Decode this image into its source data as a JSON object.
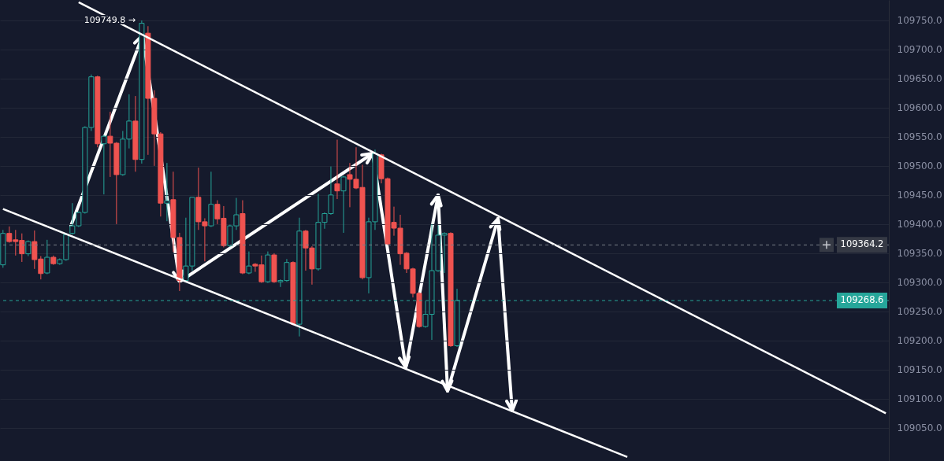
{
  "chart_data": {
    "type": "candlestick",
    "categories": [
      null,
      null,
      null,
      null,
      null,
      null,
      null,
      null,
      null,
      null,
      null,
      null,
      null,
      null,
      null,
      null,
      null,
      null,
      null,
      null,
      null,
      null,
      null,
      null,
      null,
      null,
      null,
      null,
      null,
      null,
      null,
      null,
      null,
      null,
      null,
      null,
      null,
      null,
      null,
      null,
      null,
      null,
      null,
      null,
      null,
      null,
      null,
      null,
      null,
      null,
      null,
      null,
      null,
      null,
      null,
      null,
      null,
      null,
      null,
      null,
      null,
      null,
      null,
      null,
      null,
      null,
      null,
      null,
      null,
      null,
      null,
      null,
      null,
      null,
      null,
      null,
      null,
      null,
      null,
      null,
      null,
      null,
      null,
      null,
      null,
      null,
      null,
      null,
      null,
      null,
      null,
      null,
      null,
      null,
      null,
      null,
      null,
      null,
      null,
      null,
      null,
      null,
      null,
      null,
      null,
      null,
      null,
      null,
      null,
      null,
      null,
      null,
      null,
      null,
      null,
      null,
      null,
      null,
      null,
      null,
      null,
      null,
      null,
      null,
      null,
      null,
      null,
      null,
      null,
      null,
      null,
      null,
      null,
      null,
      null,
      null,
      null,
      null,
      null,
      null,
      null
    ],
    "ohlc": [
      [
        109330,
        109390,
        109325,
        109384
      ],
      [
        109384,
        109396,
        109368,
        109370
      ],
      [
        109373,
        109390,
        109346,
        109370
      ],
      [
        109372,
        109384,
        109335,
        109349
      ],
      [
        109349,
        109372,
        109345,
        109370
      ],
      [
        109370,
        109389,
        109323,
        109339
      ],
      [
        109340,
        109345,
        109305,
        109315
      ],
      [
        109316,
        109373,
        109314,
        109343
      ],
      [
        109343,
        109346,
        109330,
        109332
      ],
      [
        109332,
        109341,
        109330,
        109339
      ],
      [
        109339,
        109384,
        109337,
        109382
      ],
      [
        109384,
        109436,
        109382,
        109397
      ],
      [
        109397,
        109422,
        109395,
        109420
      ],
      [
        109420,
        109568,
        109418,
        109566
      ],
      [
        109566,
        109657,
        109560,
        109653
      ],
      [
        109653,
        109655,
        109532,
        109538
      ],
      [
        109538,
        109553,
        109451,
        109551
      ],
      [
        109551,
        109593,
        109481,
        109539
      ],
      [
        109539,
        109541,
        109400,
        109485
      ],
      [
        109485,
        109560,
        109483,
        109546
      ],
      [
        109546,
        109623,
        109530,
        109577
      ],
      [
        109577,
        109620,
        109490,
        109511
      ],
      [
        109511,
        109749.8,
        109504,
        109745
      ],
      [
        109728,
        109740,
        109519,
        109616
      ],
      [
        109616,
        109630,
        109500,
        109555
      ],
      [
        109555,
        109558,
        109413,
        109436
      ],
      [
        109436,
        109505,
        109405,
        109440
      ],
      [
        109442,
        109490,
        109352,
        109377
      ],
      [
        109377,
        109385,
        109285,
        109303
      ],
      [
        109303,
        109411,
        109300,
        109328
      ],
      [
        109328,
        109446,
        109320,
        109446
      ],
      [
        109446,
        109497,
        109390,
        109404
      ],
      [
        109404,
        109410,
        109336,
        109397
      ],
      [
        109397,
        109490,
        109395,
        109434
      ],
      [
        109434,
        109441,
        109400,
        109409
      ],
      [
        109410,
        109431,
        109360,
        109363
      ],
      [
        109363,
        109399,
        109361,
        109397
      ],
      [
        109397,
        109445,
        109390,
        109416
      ],
      [
        109418,
        109441,
        109314,
        109316
      ],
      [
        109316,
        109353,
        109314,
        109328
      ],
      [
        109331,
        109333,
        109318,
        109328
      ],
      [
        109330,
        109346,
        109299,
        109301
      ],
      [
        109301,
        109353,
        109299,
        109347
      ],
      [
        109347,
        109350,
        109299,
        109301
      ],
      [
        109301,
        109305,
        109292,
        109303
      ],
      [
        109303,
        109340,
        109301,
        109334
      ],
      [
        109334,
        109336,
        109226,
        109228
      ],
      [
        109228,
        109411,
        109207,
        109388
      ],
      [
        109388,
        109390,
        109320,
        109359
      ],
      [
        109359,
        109362,
        109296,
        109323
      ],
      [
        109323,
        109452,
        109320,
        109403
      ],
      [
        109403,
        109420,
        109392,
        109418
      ],
      [
        109418,
        109499,
        109416,
        109450
      ],
      [
        109469,
        109545,
        109443,
        109457
      ],
      [
        109457,
        109483,
        109385,
        109481
      ],
      [
        109485,
        109505,
        109429,
        109477
      ],
      [
        109477,
        109532,
        109460,
        109462
      ],
      [
        109463,
        109502,
        109305,
        109308
      ],
      [
        109308,
        109411,
        109281,
        109404
      ],
      [
        109404,
        109528,
        109390,
        109521
      ],
      [
        109519,
        109521,
        109470,
        109478
      ],
      [
        109478,
        109480,
        109364,
        109366
      ],
      [
        109403,
        109430,
        109380,
        109393
      ],
      [
        109393,
        109416,
        109330,
        109349
      ],
      [
        109350,
        109352,
        109316,
        109323
      ],
      [
        109323,
        109325,
        109274,
        109281
      ],
      [
        109281,
        109283,
        109222,
        109224
      ],
      [
        109224,
        109268,
        109222,
        109245
      ],
      [
        109245,
        109400,
        109201,
        109320
      ],
      [
        109320,
        109398,
        109318,
        109381
      ],
      [
        109381,
        109386,
        109316,
        109384
      ],
      [
        109384,
        109386,
        109189,
        109191
      ],
      [
        109191,
        109289,
        109189,
        109268.6
      ],
      null,
      null,
      null,
      null,
      null,
      null,
      null,
      null,
      null,
      null,
      null,
      null,
      null,
      null,
      null,
      null,
      null,
      null,
      null,
      null,
      null,
      null,
      null,
      null,
      null,
      null,
      null,
      null,
      null,
      null,
      null,
      null,
      null,
      null,
      null,
      null,
      null,
      null,
      null,
      null,
      null,
      null,
      null,
      null,
      null,
      null,
      null,
      null,
      null,
      null,
      null,
      null,
      null,
      null,
      null,
      null,
      null,
      null,
      null,
      null,
      null,
      null,
      null,
      null,
      null,
      null,
      null,
      null
    ],
    "series": [
      {
        "type": "line",
        "color": "#ffffff",
        "values": [
          null,
          null,
          null,
          null,
          null,
          null,
          null,
          null,
          null,
          null,
          null,
          null,
          109781,
          null,
          null,
          null,
          null,
          null,
          null,
          null,
          null,
          null,
          null,
          null,
          null,
          null,
          null,
          null,
          null,
          null,
          null,
          null,
          null,
          null,
          null,
          null,
          null,
          null,
          null,
          null,
          null,
          null,
          null,
          null,
          null,
          null,
          null,
          null,
          null,
          null,
          null,
          null,
          null,
          null,
          null,
          null,
          null,
          null,
          null,
          null,
          null,
          null,
          null,
          null,
          null,
          null,
          null,
          null,
          null,
          null,
          null,
          null,
          null,
          null,
          null,
          null,
          null,
          null,
          null,
          null,
          null,
          null,
          null,
          null,
          null,
          null,
          null,
          null,
          null,
          null,
          null,
          null,
          null,
          null,
          null,
          null,
          null,
          null,
          null,
          null,
          null,
          null,
          null,
          null,
          null,
          null,
          null,
          null,
          null,
          null,
          null,
          null,
          null,
          null,
          null,
          null,
          null,
          null,
          null,
          null,
          null,
          null,
          null,
          null,
          null,
          null,
          null,
          null,
          null,
          null,
          null,
          null,
          null,
          null,
          null,
          null,
          null,
          null,
          null,
          null,
          109075
        ]
      },
      {
        "type": "line",
        "color": "#ffffff",
        "values": [
          109426,
          null,
          null,
          null,
          null,
          null,
          null,
          null,
          null,
          null,
          null,
          null,
          null,
          null,
          null,
          null,
          null,
          null,
          null,
          null,
          null,
          null,
          null,
          null,
          null,
          null,
          null,
          null,
          null,
          null,
          null,
          null,
          null,
          null,
          null,
          null,
          null,
          null,
          null,
          null,
          null,
          null,
          null,
          null,
          null,
          null,
          null,
          null,
          null,
          null,
          null,
          null,
          null,
          null,
          null,
          null,
          null,
          null,
          null,
          null,
          null,
          null,
          null,
          null,
          null,
          null,
          null,
          null,
          null,
          null,
          null,
          null,
          null,
          null,
          null,
          null,
          null,
          null,
          null,
          null,
          null,
          null,
          null,
          null,
          null,
          null,
          null,
          null,
          null,
          null,
          null,
          null,
          null,
          null,
          null,
          null,
          null,
          null,
          null,
          109000,
          null,
          null,
          null,
          null,
          null,
          null,
          null,
          null,
          null,
          null,
          null,
          null,
          null,
          null,
          null,
          null,
          null,
          null,
          null,
          null,
          null,
          null,
          null,
          null,
          null,
          null,
          null,
          null,
          null,
          null,
          null,
          null,
          null,
          null,
          null,
          null,
          null,
          null,
          null,
          null,
          null
        ]
      }
    ],
    "ylim": [
      108993,
      109785
    ],
    "yticks": [
      {
        "value": 109050,
        "label": "109050.0"
      },
      {
        "value": 109100,
        "label": "109100.0"
      },
      {
        "value": 109150,
        "label": "109150.0"
      },
      {
        "value": 109200,
        "label": "109200.0"
      },
      {
        "value": 109250,
        "label": "109250.0"
      },
      {
        "value": 109300,
        "label": "109300.0"
      },
      {
        "value": 109350,
        "label": "109350.0"
      },
      {
        "value": 109400,
        "label": "109400.0"
      },
      {
        "value": 109450,
        "label": "109450.0"
      },
      {
        "value": 109500,
        "label": "109500.0"
      },
      {
        "value": 109550,
        "label": "109550.0"
      },
      {
        "value": 109600,
        "label": "109600.0"
      },
      {
        "value": 109650,
        "label": "109650.0"
      },
      {
        "value": 109700,
        "label": "109700.0"
      },
      {
        "value": 109750,
        "label": "109750.0"
      }
    ],
    "ref_lines": [
      {
        "axis": "y",
        "value": 109364.2,
        "label": "109364.2",
        "color": "#787b86",
        "line_style": "dashed"
      },
      {
        "axis": "y",
        "value": 109268.6,
        "label": "109268.6",
        "color": "#26a69a",
        "line_style": "dashed"
      }
    ],
    "annotations": [
      {
        "text": "109749.8 →",
        "y": 109749.8
      }
    ],
    "grid": "y",
    "tick_labels": "y"
  }
}
